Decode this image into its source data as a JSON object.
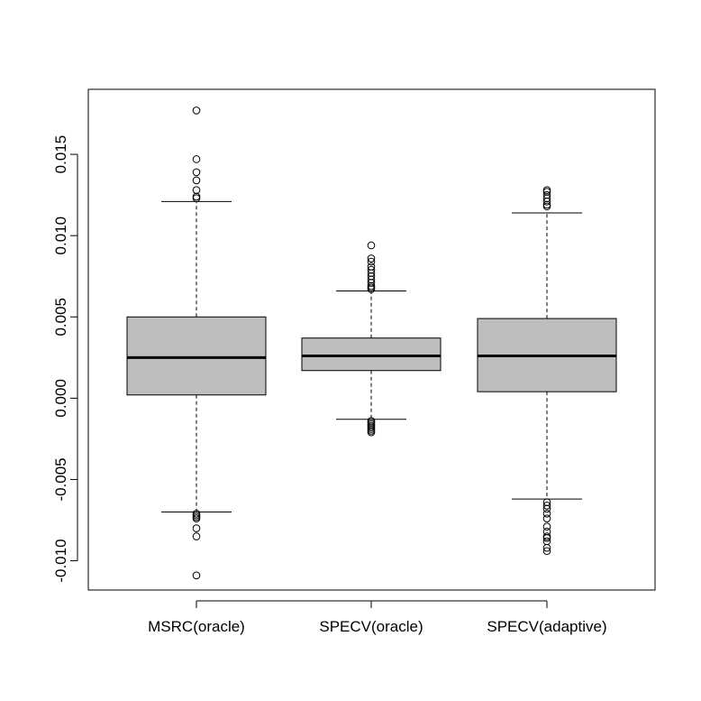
{
  "chart_data": {
    "type": "boxplot",
    "categories": [
      "MSRC(oracle)",
      "SPECV(oracle)",
      "SPECV(adaptive)"
    ],
    "ylim": [
      -0.0118,
      0.019
    ],
    "yticks": [
      -0.01,
      -0.005,
      0.0,
      0.005,
      0.01,
      0.015
    ],
    "ytick_labels": [
      "-0.010",
      "-0.005",
      "0.000",
      "0.005",
      "0.010",
      "0.015"
    ],
    "grid": false,
    "boxes": [
      {
        "label": "MSRC(oracle)",
        "whisker_low": -0.007,
        "q1": 0.0002,
        "median": 0.0025,
        "q3": 0.005,
        "whisker_high": 0.0121,
        "outliers": [
          0.0177,
          0.0147,
          0.0139,
          0.0134,
          0.0128,
          0.0124,
          0.0123,
          -0.0071,
          -0.0072,
          -0.0073,
          -0.0074,
          -0.008,
          -0.0085,
          -0.0109
        ]
      },
      {
        "label": "SPECV(oracle)",
        "whisker_low": -0.0013,
        "q1": 0.0017,
        "median": 0.0026,
        "q3": 0.0037,
        "whisker_high": 0.0066,
        "outliers": [
          0.0094,
          0.0086,
          0.0084,
          0.0081,
          0.0079,
          0.0077,
          0.0075,
          0.0073,
          0.0071,
          0.0069,
          0.0068,
          0.0067,
          -0.0014,
          -0.0015,
          -0.0016,
          -0.0017,
          -0.0018,
          -0.0019,
          -0.002,
          -0.0021
        ]
      },
      {
        "label": "SPECV(adaptive)",
        "whisker_low": -0.0062,
        "q1": 0.0004,
        "median": 0.0026,
        "q3": 0.0049,
        "whisker_high": 0.0114,
        "outliers": [
          0.0128,
          0.0127,
          0.0125,
          0.0123,
          0.0121,
          0.0119,
          0.0118,
          -0.0064,
          -0.0066,
          -0.0068,
          -0.0071,
          -0.0074,
          -0.0079,
          -0.0082,
          -0.0085,
          -0.0086,
          -0.0088,
          -0.0092,
          -0.0094
        ]
      }
    ],
    "box_color": "#bebebe",
    "line_color": "#000000"
  }
}
